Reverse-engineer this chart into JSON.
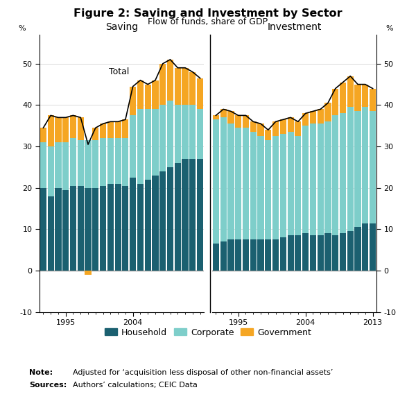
{
  "title": "Figure 2: Saving and Investment by Sector",
  "subtitle": "Flow of funds, share of GDP",
  "ylim": [
    -10,
    57
  ],
  "yticks": [
    -10,
    0,
    10,
    20,
    30,
    40,
    50
  ],
  "note_label": "Note:",
  "note_text": "Adjusted for ‘acquisition less disposal of other non-financial assets’",
  "sources_label": "Sources:",
  "sources_text": "Authors’ calculations; CEIC Data",
  "colors": {
    "household": "#1b6070",
    "corporate": "#7ececa",
    "government": "#f5a623",
    "line": "#000000"
  },
  "saving_years": [
    1992,
    1993,
    1994,
    1995,
    1996,
    1997,
    1998,
    1999,
    2000,
    2001,
    2002,
    2003,
    2004,
    2005,
    2006,
    2007,
    2008,
    2009,
    2010,
    2011,
    2012,
    2013
  ],
  "saving_household": [
    20,
    18,
    20,
    19.5,
    20.5,
    20.5,
    20,
    20,
    20.5,
    21,
    21,
    20.5,
    22.5,
    21,
    22,
    23,
    24,
    25,
    26,
    27,
    27,
    27
  ],
  "saving_corporate": [
    11,
    12,
    11,
    11.5,
    11.5,
    11,
    11.5,
    11.5,
    11.5,
    11,
    11,
    11.5,
    15,
    18,
    17,
    16,
    16,
    16,
    14,
    13,
    13,
    12
  ],
  "saving_government": [
    3.5,
    7.5,
    6,
    6,
    5.5,
    5.5,
    -1,
    3,
    3.5,
    4,
    4,
    4.5,
    7,
    7,
    6,
    7,
    10,
    10,
    9,
    9,
    8,
    7.5
  ],
  "investment_years": [
    1992,
    1993,
    1994,
    1995,
    1996,
    1997,
    1998,
    1999,
    2000,
    2001,
    2002,
    2003,
    2004,
    2005,
    2006,
    2007,
    2008,
    2009,
    2010,
    2011,
    2012,
    2013
  ],
  "investment_household": [
    6.5,
    7,
    7.5,
    7.5,
    7.5,
    7.5,
    7.5,
    7.5,
    7.5,
    8,
    8.5,
    8.5,
    9,
    8.5,
    8.5,
    9,
    8.5,
    9,
    9.5,
    10.5,
    11.5,
    11.5
  ],
  "investment_corporate": [
    30,
    30,
    28,
    27,
    27,
    26,
    25,
    24,
    25,
    25,
    25,
    24,
    26,
    27,
    27,
    27,
    29,
    29,
    30,
    28,
    28,
    27
  ],
  "investment_government": [
    1,
    2,
    3,
    3,
    3,
    2.5,
    3,
    2.5,
    3.5,
    3.5,
    3.5,
    3.5,
    3,
    3,
    3.5,
    4.5,
    6.5,
    7.5,
    7.5,
    6.5,
    5.5,
    5.5
  ]
}
